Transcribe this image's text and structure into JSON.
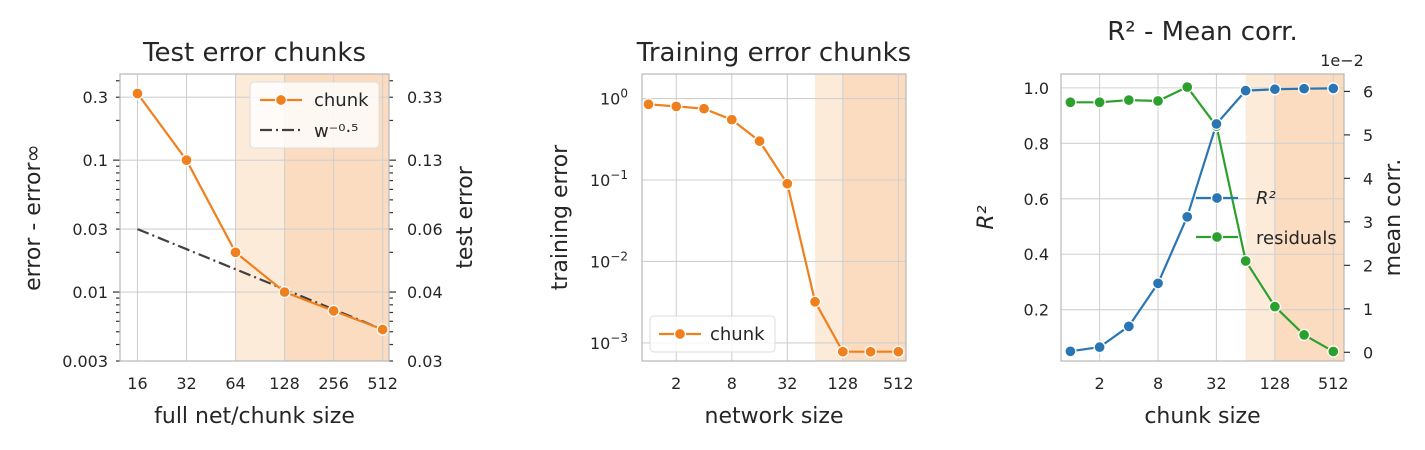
{
  "chart_data": [
    {
      "type": "line",
      "title": "Test error chunks",
      "xlabel": "full net/chunk size",
      "ylabel": "error - error∞",
      "y2label": "test error",
      "xscale": "log2",
      "yscale": "log",
      "xlim": [
        12.5,
        560
      ],
      "ylim": [
        0.003,
        0.45
      ],
      "xticks": [
        16,
        32,
        64,
        128,
        256,
        512
      ],
      "xticklabels": [
        "16",
        "32",
        "64",
        "128",
        "256",
        "512"
      ],
      "yticks": [
        0.003,
        0.01,
        0.03,
        0.1,
        0.3
      ],
      "yticklabels": [
        "0.003",
        "0.01",
        "0.03",
        "0.1",
        "0.3"
      ],
      "y2ticklabels": [
        "0.03",
        "0.04",
        "0.06",
        "0.13",
        "0.33"
      ],
      "grid": true,
      "legend_position": "top-right",
      "shaded_regions": [
        {
          "x": [
            64,
            128
          ],
          "color": "#fdebda"
        },
        {
          "x": [
            128,
            560
          ],
          "color": "#fbdcc0"
        }
      ],
      "series": [
        {
          "name": "chunk",
          "color": "#f07f1d",
          "style": "solid-marker",
          "x": [
            16,
            32,
            64,
            128,
            256,
            512
          ],
          "y": [
            0.32,
            0.1,
            0.02,
            0.01,
            0.0072,
            0.0052
          ]
        },
        {
          "name": "w⁻⁰·⁵",
          "color": "#404040",
          "style": "dashdot",
          "x": [
            16,
            512
          ],
          "y": [
            0.03,
            0.0052
          ]
        }
      ]
    },
    {
      "type": "line",
      "title": "Training error chunks",
      "xlabel": "network size",
      "ylabel": "training error",
      "xscale": "log2",
      "yscale": "log",
      "xlim": [
        0.85,
        620
      ],
      "ylim": [
        0.0006,
        2
      ],
      "xticks": [
        2,
        8,
        32,
        128,
        512
      ],
      "xticklabels": [
        "2",
        "8",
        "32",
        "128",
        "512"
      ],
      "ytick_exponents": [
        0,
        -1,
        -2,
        -3
      ],
      "ytick_base": "10",
      "grid": true,
      "legend_position": "bottom-left",
      "shaded_regions": [
        {
          "x": [
            64,
            128
          ],
          "color": "#fdebda"
        },
        {
          "x": [
            128,
            620
          ],
          "color": "#fbdcc0"
        }
      ],
      "series": [
        {
          "name": "chunk",
          "color": "#f07f1d",
          "style": "solid-marker",
          "x": [
            1,
            2,
            4,
            8,
            16,
            32,
            64,
            128,
            256,
            512
          ],
          "y": [
            0.85,
            0.8,
            0.75,
            0.55,
            0.3,
            0.09,
            0.0032,
            0.00078,
            0.00078,
            0.00078
          ]
        }
      ]
    },
    {
      "type": "line",
      "title": "R² - Mean corr.",
      "xlabel": "chunk size",
      "ylabel": "R²",
      "y2label": "mean corr.",
      "y2_offset_label": "1e−2",
      "xscale": "log2",
      "xlim": [
        0.8,
        660
      ],
      "ylim": [
        0.015,
        1.05
      ],
      "y2lim": [
        -0.2,
        6.4
      ],
      "xticks": [
        2,
        8,
        32,
        128,
        512
      ],
      "xticklabels": [
        "2",
        "8",
        "32",
        "128",
        "512"
      ],
      "yticks": [
        0.2,
        0.4,
        0.6,
        0.8,
        1.0
      ],
      "yticklabels": [
        "0.2",
        "0.4",
        "0.6",
        "0.8",
        "1.0"
      ],
      "y2ticks": [
        0,
        1,
        2,
        3,
        4,
        5,
        6
      ],
      "y2ticklabels": [
        "0",
        "1",
        "2",
        "3",
        "4",
        "5",
        "6"
      ],
      "grid": true,
      "legend_position": "center-right",
      "shaded_regions": [
        {
          "x": [
            64,
            128
          ],
          "color": "#fdebda"
        },
        {
          "x": [
            128,
            660
          ],
          "color": "#fbdcc0"
        }
      ],
      "series": [
        {
          "name": "R²",
          "color": "#2a75b3",
          "axis": "left",
          "x": [
            1,
            2,
            4,
            8,
            16,
            32,
            64,
            128,
            256,
            512
          ],
          "y": [
            0.05,
            0.065,
            0.14,
            0.295,
            0.535,
            0.87,
            0.99,
            0.995,
            0.997,
            0.998
          ]
        },
        {
          "name": "residuals",
          "color": "#2ca02c",
          "axis": "right",
          "x": [
            1,
            2,
            4,
            8,
            16,
            32,
            64,
            128,
            256,
            512
          ],
          "y": [
            5.75,
            5.75,
            5.8,
            5.78,
            6.1,
            5.2,
            2.1,
            1.05,
            0.4,
            0.02
          ]
        }
      ]
    }
  ]
}
